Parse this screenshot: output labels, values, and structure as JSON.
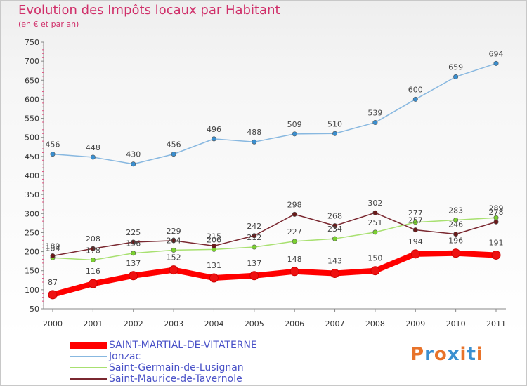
{
  "header": {
    "title": "Evolution des Impôts locaux par Habitant",
    "subtitle": "(en € et par an)"
  },
  "chart_data": {
    "type": "line",
    "title": "Evolution des Impôts locaux par Habitant",
    "subtitle": "(en € et par an)",
    "xlabel": "",
    "ylabel": "",
    "ylim": [
      50,
      750
    ],
    "yticks": [
      50,
      100,
      150,
      200,
      250,
      300,
      350,
      400,
      450,
      500,
      550,
      600,
      650,
      700,
      750
    ],
    "grid": false,
    "x": [
      "2000",
      "2001",
      "2002",
      "2003",
      "2004",
      "2005",
      "2006",
      "2007",
      "2008",
      "2009",
      "2010",
      "2011"
    ],
    "series": [
      {
        "name": "SAINT-MARTIAL-DE-VITATERNE",
        "color": "#ff0000",
        "marker": "#ee1111",
        "values": [
          87,
          116,
          137,
          152,
          131,
          137,
          148,
          143,
          150,
          194,
          196,
          191
        ],
        "labels": [
          "87",
          "116",
          "137",
          "152",
          "131",
          "137",
          "148",
          "143",
          "150",
          "194",
          "196",
          "191"
        ]
      },
      {
        "name": "Jonzac",
        "color": "#88b8e0",
        "marker": "#3a8fd0",
        "values": [
          456,
          448,
          430,
          456,
          496,
          488,
          509,
          510,
          539,
          600,
          659,
          694
        ],
        "labels": [
          "456",
          "448",
          "430",
          "456",
          "496",
          "488",
          "509",
          "510",
          "539",
          "600",
          "659",
          "694"
        ]
      },
      {
        "name": "Saint-Germain-de-Lusignan",
        "color": "#a8e070",
        "marker": "#7ad030",
        "values": [
          184,
          178,
          196,
          204,
          206,
          212,
          227,
          234,
          251,
          277,
          283,
          289
        ],
        "labels": [
          "184",
          "178",
          "196",
          "204",
          "206",
          "212",
          "227",
          "234",
          "251",
          "277",
          "283",
          "289"
        ]
      },
      {
        "name": "Saint-Maurice-de-Tavernole",
        "color": "#7a2830",
        "marker": "#6a1a1a",
        "values": [
          189,
          208,
          225,
          229,
          215,
          242,
          298,
          268,
          302,
          257,
          246,
          278
        ],
        "labels": [
          "189",
          "208",
          "225",
          "229",
          "215",
          "242",
          "298",
          "268",
          "302",
          "257",
          "246",
          "278"
        ]
      }
    ]
  },
  "legend": {
    "items": [
      {
        "label": "SAINT-MARTIAL-DE-VITATERNE",
        "color": "#ff0000"
      },
      {
        "label": "Jonzac",
        "color": "#88b8e0"
      },
      {
        "label": "Saint-Germain-de-Lusignan",
        "color": "#a8e070"
      },
      {
        "label": "Saint-Maurice-de-Tavernole",
        "color": "#7a2830"
      }
    ]
  },
  "logo": {
    "text": "Proxiti",
    "colors": [
      "#e8732a",
      "#3a8fd0",
      "#e8732a",
      "#3a8fd0",
      "#e8732a",
      "#3a8fd0",
      "#e8732a"
    ]
  }
}
